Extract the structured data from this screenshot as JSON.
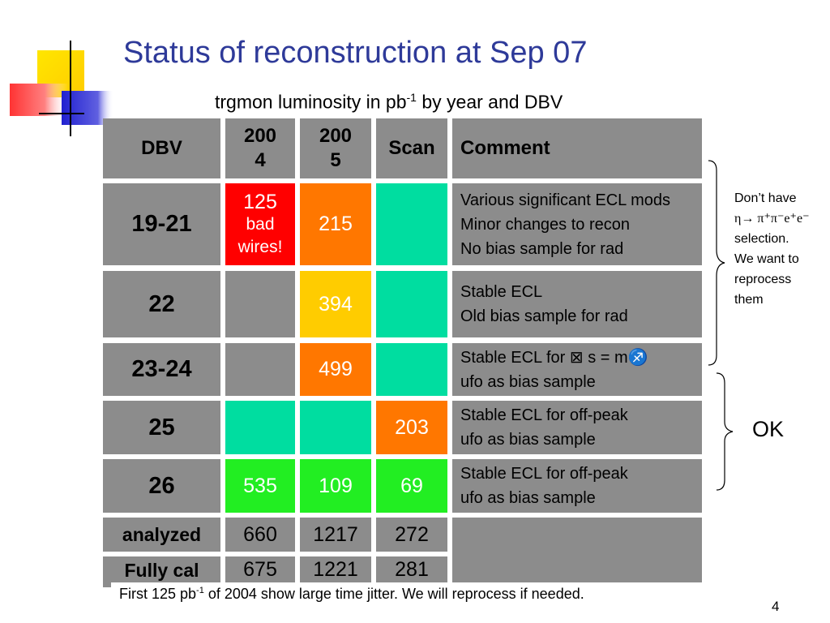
{
  "title": "Status of reconstruction at Sep 07",
  "subtitle": {
    "text": "trgmon luminosity in pb",
    "sup": "-1",
    "tail": " by year and DBV"
  },
  "header": {
    "dbv": "DBV",
    "y2004_a": "200",
    "y2004_b": "4",
    "y2005_a": "200",
    "y2005_b": "5",
    "scan": "Scan",
    "comment": "Comment"
  },
  "rows": [
    {
      "dbv": "19-21",
      "y2004": [
        "125",
        "bad",
        "wires!"
      ],
      "y2005": "215",
      "scan": "",
      "comment": [
        "Various significant ECL mods",
        "Minor changes to recon",
        "No bias sample for rad"
      ]
    },
    {
      "dbv": "22",
      "y2004": "",
      "y2005": "394",
      "scan": "",
      "comment": [
        "Stable ECL",
        "Old bias sample for rad"
      ]
    },
    {
      "dbv": "23-24",
      "y2004": "",
      "y2005": "499",
      "scan": "",
      "comment": [
        "Stable ECL for ⊠ s = m♐",
        "ufo as bias sample"
      ]
    },
    {
      "dbv": "25",
      "y2004": "",
      "y2005": "",
      "scan": "203",
      "comment": [
        "Stable ECL for off-peak",
        "ufo as bias sample"
      ]
    },
    {
      "dbv": "26",
      "y2004": "535",
      "y2005": "109",
      "scan": "69",
      "comment": [
        "Stable ECL for off-peak",
        "ufo as bias sample"
      ]
    }
  ],
  "analyzed": {
    "label": "analyzed",
    "y2004": "660",
    "y2005": "1217",
    "scan": "272"
  },
  "fullycal": {
    "label": "Fully cal",
    "y2004": "675",
    "y2005": "1221",
    "scan": "281"
  },
  "side_note": [
    "Don’t have",
    "η→ π⁺π⁻e⁺e⁻",
    "selection.",
    "We want to",
    "reprocess",
    "them"
  ],
  "ok_label": "OK",
  "footnote": {
    "pre": "First 125 pb",
    "sup": "-1",
    "post": " of 2004 show large time jitter. We will reprocess if needed."
  },
  "page_number": "4",
  "colors": {
    "title": "#2e3a99",
    "cell_gray": "#8c8c8c",
    "red": "#ff0000",
    "orange": "#ff7700",
    "yellow": "#ffcc00",
    "teal": "#00dda0",
    "green": "#22ee22"
  }
}
